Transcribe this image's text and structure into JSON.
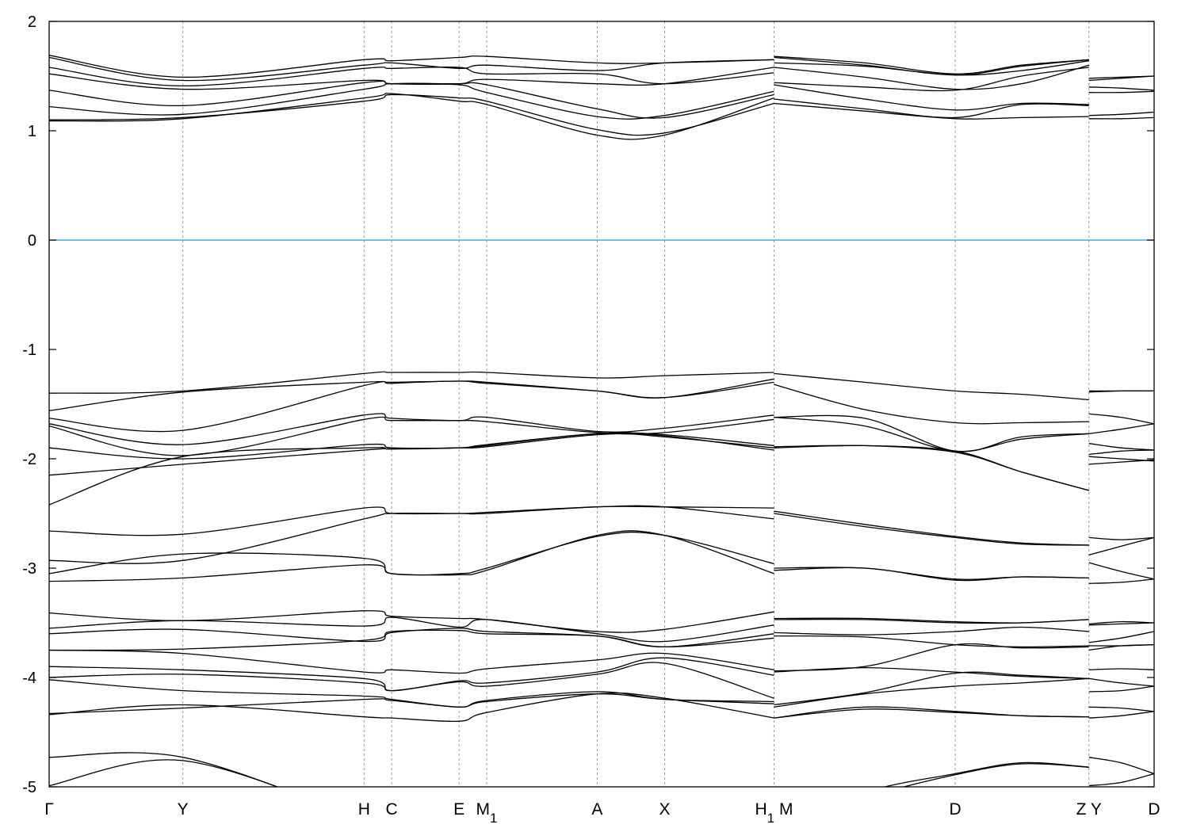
{
  "chart_data": {
    "type": "line",
    "title": "",
    "xlabel": "",
    "ylabel": "",
    "ylim": [
      -5,
      2
    ],
    "yticks": [
      -5,
      -4,
      -3,
      -2,
      -1,
      0,
      1,
      2
    ],
    "grid": "vertical dashed lines at high-symmetry points",
    "fermi_level": 0,
    "fermi_color": "#4aa8c8",
    "line_color": "#000000",
    "kpoints": [
      {
        "label": "Γ",
        "sub": "",
        "x": 0
      },
      {
        "label": "Y",
        "sub": "",
        "x": 0.121
      },
      {
        "label": "H",
        "sub": "",
        "x": 0.285
      },
      {
        "label": "C",
        "sub": "",
        "x": 0.31
      },
      {
        "label": "E",
        "sub": "",
        "x": 0.371
      },
      {
        "label": "M",
        "sub": "1",
        "x": 0.396
      },
      {
        "label": "A",
        "sub": "",
        "x": 0.496
      },
      {
        "label": "X",
        "sub": "",
        "x": 0.557
      },
      {
        "label": "H",
        "sub": "1",
        "x": 0.656
      },
      {
        "label": "M",
        "sub": "",
        "x": 0.656
      },
      {
        "label": "D",
        "sub": "",
        "x": 0.82
      },
      {
        "label": "Z",
        "sub": "",
        "x": 0.941
      },
      {
        "label": "Y",
        "sub": "",
        "x": 0.941
      },
      {
        "label": "D",
        "sub": "",
        "x": 1
      }
    ],
    "xtick_groups": [
      {
        "text": "Γ",
        "sub": "",
        "x": 0
      },
      {
        "text": "Y",
        "sub": "",
        "x": 0.121
      },
      {
        "text": "H",
        "sub": "",
        "x": 0.285
      },
      {
        "text": "C",
        "sub": "",
        "x": 0.31
      },
      {
        "text": "E",
        "sub": "",
        "x": 0.371
      },
      {
        "text": "M",
        "sub": "1",
        "x": 0.396
      },
      {
        "text": "A",
        "sub": "",
        "x": 0.496
      },
      {
        "text": "X",
        "sub": "",
        "x": 0.557
      },
      {
        "text": "H",
        "sub": "1",
        "x": 0.656,
        "extra": " M"
      },
      {
        "text": "D",
        "sub": "",
        "x": 0.82
      },
      {
        "text": "Z Y",
        "sub": "",
        "x": 0.941
      },
      {
        "text": "D",
        "sub": "",
        "x": 1
      }
    ],
    "segments": [
      {
        "name": "segment-1",
        "x": [
          0,
          0.121,
          0.285,
          0.31,
          0.371,
          0.396,
          0.496,
          0.557,
          0.656
        ],
        "bands": [
          [
            1.09,
            1.11,
            1.3,
            1.34,
            1.27,
            1.24,
            0.96,
            0.96,
            1.3
          ],
          [
            1.1,
            1.12,
            1.27,
            1.33,
            1.3,
            1.27,
            1.01,
            0.98,
            1.25
          ],
          [
            1.22,
            1.15,
            1.38,
            1.43,
            1.42,
            1.35,
            1.13,
            1.14,
            1.36
          ],
          [
            1.37,
            1.23,
            1.44,
            1.43,
            1.43,
            1.42,
            1.2,
            1.12,
            1.33
          ],
          [
            1.52,
            1.38,
            1.46,
            1.43,
            1.43,
            1.47,
            1.43,
            1.43,
            1.58
          ],
          [
            1.58,
            1.41,
            1.57,
            1.57,
            1.58,
            1.52,
            1.52,
            1.43,
            1.53
          ],
          [
            1.67,
            1.46,
            1.6,
            1.62,
            1.57,
            1.6,
            1.55,
            1.62,
            1.65
          ],
          [
            1.69,
            1.49,
            1.65,
            1.64,
            1.67,
            1.68,
            1.62,
            1.62,
            1.65
          ],
          [
            -1.4,
            -1.38,
            -1.22,
            -1.21,
            -1.21,
            -1.21,
            -1.26,
            -1.24,
            -1.21
          ],
          [
            -1.56,
            -1.39,
            -1.3,
            -1.3,
            -1.29,
            -1.3,
            -1.38,
            -1.44,
            -1.27
          ],
          [
            -1.63,
            -1.74,
            -1.33,
            -1.31,
            -1.29,
            -1.31,
            -1.38,
            -1.44,
            -1.3
          ],
          [
            -1.68,
            -1.87,
            -1.6,
            -1.63,
            -1.65,
            -1.62,
            -1.75,
            -1.72,
            -1.6
          ],
          [
            -1.7,
            -1.97,
            -1.64,
            -1.65,
            -1.65,
            -1.66,
            -1.76,
            -1.76,
            -1.64
          ],
          [
            -1.9,
            -2.0,
            -1.87,
            -1.9,
            -1.9,
            -1.87,
            -1.77,
            -1.78,
            -1.88
          ],
          [
            -2.15,
            -2.05,
            -1.92,
            -1.91,
            -1.9,
            -1.89,
            -1.78,
            -1.79,
            -1.92
          ],
          [
            -2.42,
            -1.98,
            -1.9,
            -1.91,
            -1.9,
            -1.88,
            -1.77,
            -1.8,
            -1.9
          ],
          [
            -2.66,
            -2.69,
            -2.45,
            -2.5,
            -2.5,
            -2.5,
            -2.44,
            -2.44,
            -2.45
          ],
          [
            -2.93,
            -2.93,
            -2.55,
            -2.5,
            -2.5,
            -2.49,
            -2.44,
            -2.44,
            -2.55
          ],
          [
            -3.05,
            -2.87,
            -2.91,
            -3.05,
            -3.05,
            -3.0,
            -2.71,
            -2.7,
            -2.96
          ],
          [
            -3.12,
            -3.09,
            -2.97,
            -3.05,
            -3.06,
            -3.02,
            -2.7,
            -2.7,
            -3.05
          ],
          [
            -3.41,
            -3.48,
            -3.39,
            -3.44,
            -3.46,
            -3.47,
            -3.58,
            -3.56,
            -3.4
          ],
          [
            -3.55,
            -3.48,
            -3.53,
            -3.45,
            -3.54,
            -3.47,
            -3.6,
            -3.67,
            -3.52
          ],
          [
            -3.6,
            -3.56,
            -3.67,
            -3.59,
            -3.55,
            -3.58,
            -3.62,
            -3.72,
            -3.6
          ],
          [
            -3.75,
            -3.74,
            -3.66,
            -3.58,
            -3.57,
            -3.6,
            -3.62,
            -3.72,
            -3.64
          ],
          [
            -3.75,
            -3.78,
            -3.95,
            -3.93,
            -3.96,
            -3.92,
            -3.84,
            -3.78,
            -3.93
          ],
          [
            -3.9,
            -3.93,
            -4.01,
            -4.12,
            -4.03,
            -4.05,
            -3.95,
            -3.82,
            -3.98
          ],
          [
            -4.0,
            -3.97,
            -4.05,
            -4.12,
            -4.04,
            -4.08,
            -3.97,
            -3.87,
            -4.19
          ],
          [
            -4.02,
            -4.12,
            -4.17,
            -4.2,
            -4.27,
            -4.21,
            -4.13,
            -4.2,
            -4.22
          ],
          [
            -4.33,
            -4.28,
            -4.2,
            -4.21,
            -4.27,
            -4.22,
            -4.15,
            -4.2,
            -4.24
          ],
          [
            -4.34,
            -4.25,
            -4.36,
            -4.37,
            -4.4,
            -4.32,
            -4.15,
            -4.19,
            -4.37
          ],
          [
            -4.73,
            -4.73,
            -5.3,
            -5.4,
            -5.4,
            -5.4,
            -5.4,
            -5.4,
            -5.4
          ],
          [
            -4.99,
            -4.76,
            -5.3,
            -5.4,
            -5.4,
            -5.4,
            -5.4,
            -5.4,
            -5.4
          ]
        ]
      },
      {
        "name": "segment-2",
        "x": [
          0.656,
          0.738,
          0.82,
          0.88,
          0.941
        ],
        "bands": [
          [
            1.25,
            1.18,
            1.11,
            1.12,
            1.13
          ],
          [
            1.29,
            1.2,
            1.12,
            1.24,
            1.23
          ],
          [
            1.42,
            1.29,
            1.19,
            1.25,
            1.24
          ],
          [
            1.44,
            1.4,
            1.37,
            1.5,
            1.58
          ],
          [
            1.58,
            1.49,
            1.38,
            1.43,
            1.6
          ],
          [
            1.62,
            1.59,
            1.51,
            1.55,
            1.64
          ],
          [
            1.67,
            1.6,
            1.51,
            1.59,
            1.65
          ],
          [
            1.68,
            1.62,
            1.52,
            1.6,
            1.65
          ],
          [
            -1.22,
            -1.3,
            -1.38,
            -1.41,
            -1.46
          ],
          [
            -1.32,
            -1.55,
            -1.67,
            -1.67,
            -1.66
          ],
          [
            -1.62,
            -1.63,
            -1.93,
            -1.8,
            -1.77
          ],
          [
            -1.62,
            -1.7,
            -1.93,
            -1.82,
            -1.77
          ],
          [
            -1.89,
            -1.88,
            -1.94,
            -2.12,
            -2.29
          ],
          [
            -1.9,
            -1.88,
            -1.93,
            -2.12,
            -2.29
          ],
          [
            -2.48,
            -2.6,
            -2.71,
            -2.77,
            -2.79
          ],
          [
            -2.5,
            -2.62,
            -2.72,
            -2.78,
            -2.79
          ],
          [
            -3.0,
            -3.0,
            -3.1,
            -3.08,
            -3.09
          ],
          [
            -3.02,
            -3.0,
            -3.11,
            -3.08,
            -3.09
          ],
          [
            -3.46,
            -3.46,
            -3.49,
            -3.5,
            -3.47
          ],
          [
            -3.47,
            -3.47,
            -3.5,
            -3.5,
            -3.47
          ],
          [
            -3.59,
            -3.61,
            -3.58,
            -3.54,
            -3.58
          ],
          [
            -3.62,
            -3.63,
            -3.7,
            -3.72,
            -3.71
          ],
          [
            -3.94,
            -3.9,
            -3.7,
            -3.73,
            -3.72
          ],
          [
            -3.95,
            -3.91,
            -3.95,
            -3.99,
            -4.01
          ],
          [
            -4.25,
            -4.14,
            -3.96,
            -3.98,
            -4.01
          ],
          [
            -4.27,
            -4.15,
            -4.08,
            -4.05,
            -4.01
          ],
          [
            -4.37,
            -4.27,
            -4.31,
            -4.35,
            -4.36
          ],
          [
            -4.37,
            -4.29,
            -4.32,
            -4.35,
            -4.36
          ],
          [
            -5.4,
            -5.05,
            -4.88,
            -4.78,
            -4.82
          ],
          [
            -5.4,
            -5.1,
            -4.89,
            -4.79,
            -4.82
          ]
        ]
      },
      {
        "name": "segment-3",
        "x": [
          0.941,
          0.97,
          1
        ],
        "bands": [
          [
            1.11,
            1.11,
            1.12
          ],
          [
            1.14,
            1.15,
            1.17
          ],
          [
            1.35,
            1.35,
            1.36
          ],
          [
            1.4,
            1.39,
            1.37
          ],
          [
            1.46,
            1.48,
            1.5
          ],
          [
            1.48,
            1.49,
            1.5
          ],
          [
            -1.38,
            -1.38,
            -1.38
          ],
          [
            -1.39,
            -1.38,
            -1.38
          ],
          [
            -1.59,
            -1.62,
            -1.68
          ],
          [
            -1.77,
            -1.73,
            -1.68
          ],
          [
            -1.86,
            -1.9,
            -1.92
          ],
          [
            -1.96,
            -1.93,
            -1.92
          ],
          [
            -1.98,
            -2.0,
            -2.02
          ],
          [
            -2.05,
            -2.03,
            -2.01
          ],
          [
            -2.72,
            -2.74,
            -2.72
          ],
          [
            -2.88,
            -2.8,
            -2.72
          ],
          [
            -2.95,
            -3.03,
            -3.1
          ],
          [
            -3.14,
            -3.13,
            -3.1
          ],
          [
            -3.51,
            -3.49,
            -3.5
          ],
          [
            -3.52,
            -3.51,
            -3.5
          ],
          [
            -3.68,
            -3.64,
            -3.58
          ],
          [
            -3.71,
            -3.71,
            -3.7
          ],
          [
            -3.75,
            -3.71,
            -3.7
          ],
          [
            -3.93,
            -3.92,
            -3.93
          ],
          [
            -4.01,
            -4.05,
            -4.08
          ],
          [
            -4.13,
            -4.12,
            -4.08
          ],
          [
            -4.27,
            -4.28,
            -4.31
          ],
          [
            -4.37,
            -4.35,
            -4.31
          ],
          [
            -4.73,
            -4.78,
            -4.88
          ],
          [
            -4.99,
            -4.96,
            -4.88
          ]
        ]
      }
    ]
  }
}
